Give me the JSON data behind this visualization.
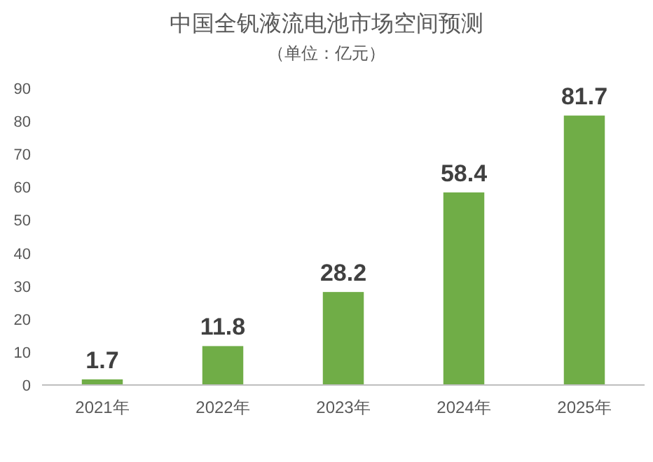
{
  "chart_data": {
    "type": "bar",
    "title": "中国全钒液流电池市场空间预测",
    "subtitle": "（单位：亿元）",
    "categories": [
      "2021年",
      "2022年",
      "2023年",
      "2024年",
      "2025年"
    ],
    "values": [
      1.7,
      11.8,
      28.2,
      58.4,
      81.7
    ],
    "color": "#70ad47",
    "ylim": [
      0,
      90
    ],
    "yticks": [
      0,
      10,
      20,
      30,
      40,
      50,
      60,
      70,
      80,
      90
    ],
    "data_labels": true
  }
}
